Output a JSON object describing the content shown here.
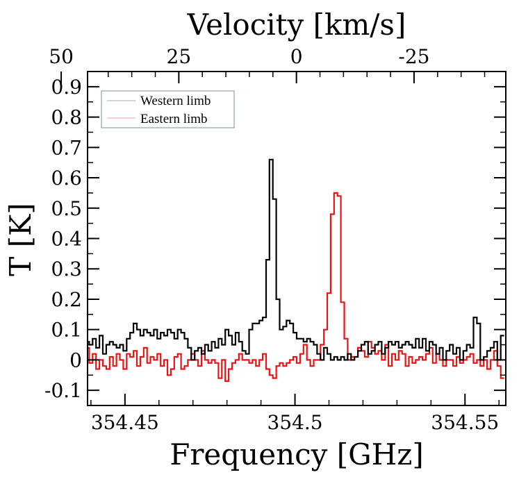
{
  "chart_data": {
    "type": "line",
    "step": true,
    "xlabel": "Frequency [GHz]",
    "x2label": "Velocity [km/s]",
    "ylabel": "T [K]",
    "xlim": [
      354.439,
      354.562
    ],
    "ylim": [
      -0.15,
      0.95
    ],
    "xticks": [
      354.45,
      354.5,
      354.55
    ],
    "xtick_labels": [
      "354.45",
      "354.5",
      "354.55"
    ],
    "x2ticks": [
      50,
      25,
      0,
      -25
    ],
    "x2tick_labels": [
      "50",
      "25",
      "0",
      "-25"
    ],
    "velocity_axis": {
      "v_at_x0": 44.4,
      "v_at_x1": -44.5,
      "x0": 354.439,
      "x1": 354.562
    },
    "yticks": [
      -0.1,
      0,
      0.1,
      0.2,
      0.3,
      0.4,
      0.5,
      0.6,
      0.7,
      0.8,
      0.9
    ],
    "ytick_labels": [
      "-0.1",
      "0",
      "0.1",
      "0.2",
      "0.3",
      "0.4",
      "0.5",
      "0.6",
      "0.7",
      "0.8",
      "0.9"
    ],
    "legend": {
      "position": "top-left",
      "entries": [
        "Western limb",
        "Eastern limb"
      ]
    },
    "series": [
      {
        "name": "Western limb",
        "color": "#000000",
        "x": [
          354.439,
          354.44,
          354.441,
          354.442,
          354.443,
          354.444,
          354.445,
          354.446,
          354.447,
          354.448,
          354.449,
          354.45,
          354.451,
          354.452,
          354.453,
          354.454,
          354.455,
          354.456,
          354.457,
          354.458,
          354.459,
          354.46,
          354.461,
          354.462,
          354.463,
          354.464,
          354.465,
          354.466,
          354.467,
          354.468,
          354.469,
          354.47,
          354.471,
          354.472,
          354.473,
          354.474,
          354.475,
          354.476,
          354.477,
          354.478,
          354.479,
          354.48,
          354.481,
          354.482,
          354.483,
          354.484,
          354.485,
          354.486,
          354.487,
          354.488,
          354.489,
          354.49,
          354.491,
          354.492,
          354.493,
          354.494,
          354.495,
          354.496,
          354.497,
          354.498,
          354.499,
          354.5,
          354.501,
          354.502,
          354.503,
          354.504,
          354.505,
          354.506,
          354.507,
          354.508,
          354.509,
          354.51,
          354.511,
          354.512,
          354.513,
          354.514,
          354.515,
          354.516,
          354.517,
          354.518,
          354.519,
          354.52,
          354.521,
          354.522,
          354.523,
          354.524,
          354.525,
          354.526,
          354.527,
          354.528,
          354.529,
          354.53,
          354.531,
          354.532,
          354.533,
          354.534,
          354.535,
          354.536,
          354.537,
          354.538,
          354.539,
          354.54,
          354.541,
          354.542,
          354.543,
          354.544,
          354.545,
          354.546,
          354.547,
          354.548,
          354.549,
          354.55,
          354.551,
          354.552,
          354.553,
          354.554,
          354.555,
          354.556,
          354.557,
          354.558,
          354.559,
          354.56,
          354.561
        ],
        "y": [
          0.06,
          0.05,
          0.07,
          0.04,
          0.08,
          0.02,
          0.05,
          0.06,
          0.05,
          0.04,
          0.05,
          0.03,
          0.07,
          0.09,
          0.12,
          0.1,
          0.08,
          0.1,
          0.09,
          0.08,
          0.1,
          0.07,
          0.09,
          0.08,
          0.1,
          0.09,
          0.07,
          0.1,
          0.09,
          0.07,
          0.04,
          0.0,
          0.03,
          0.04,
          0.02,
          0.05,
          0.03,
          0.06,
          0.04,
          0.07,
          0.05,
          0.1,
          0.08,
          0.05,
          0.09,
          0.06,
          0.03,
          0.02,
          0.1,
          0.12,
          0.12,
          0.13,
          0.14,
          0.33,
          0.66,
          0.53,
          0.2,
          0.1,
          0.11,
          0.13,
          0.12,
          0.09,
          0.07,
          0.07,
          0.06,
          0.07,
          0.06,
          0.05,
          0.02,
          0.0,
          0.04,
          0.02,
          0.0,
          0.01,
          0.0,
          0.01,
          0.0,
          0.02,
          0.0,
          0.01,
          0.03,
          0.05,
          0.06,
          0.02,
          0.03,
          0.05,
          0.06,
          0.02,
          0.04,
          0.06,
          0.05,
          0.06,
          0.04,
          0.05,
          0.06,
          0.05,
          0.04,
          0.07,
          0.04,
          0.07,
          0.03,
          0.06,
          0.05,
          0.02,
          0.04,
          0.0,
          0.03,
          0.05,
          0.02,
          0.04,
          0.0,
          0.03,
          0.05,
          0.04,
          0.14,
          0.12,
          0.0,
          0.01,
          0.03,
          0.04,
          0.06,
          0.0,
          0.08
        ]
      },
      {
        "name": "Eastern limb",
        "color": "#ee1111",
        "x": [
          354.439,
          354.44,
          354.441,
          354.442,
          354.443,
          354.444,
          354.445,
          354.446,
          354.447,
          354.448,
          354.449,
          354.45,
          354.451,
          354.452,
          354.453,
          354.454,
          354.455,
          354.456,
          354.457,
          354.458,
          354.459,
          354.46,
          354.461,
          354.462,
          354.463,
          354.464,
          354.465,
          354.466,
          354.467,
          354.468,
          354.469,
          354.47,
          354.471,
          354.472,
          354.473,
          354.474,
          354.475,
          354.476,
          354.477,
          354.478,
          354.479,
          354.48,
          354.481,
          354.482,
          354.483,
          354.484,
          354.485,
          354.486,
          354.487,
          354.488,
          354.489,
          354.49,
          354.491,
          354.492,
          354.493,
          354.494,
          354.495,
          354.496,
          354.497,
          354.498,
          354.499,
          354.5,
          354.501,
          354.502,
          354.503,
          354.504,
          354.505,
          354.506,
          354.507,
          354.508,
          354.509,
          354.51,
          354.511,
          354.512,
          354.513,
          354.514,
          354.515,
          354.516,
          354.517,
          354.518,
          354.519,
          354.52,
          354.521,
          354.522,
          354.523,
          354.524,
          354.525,
          354.526,
          354.527,
          354.528,
          354.529,
          354.53,
          354.531,
          354.532,
          354.533,
          354.534,
          354.535,
          354.536,
          354.537,
          354.538,
          354.539,
          354.54,
          354.541,
          354.542,
          354.543,
          354.544,
          354.545,
          354.546,
          354.547,
          354.548,
          354.549,
          354.55,
          354.551,
          354.552,
          354.553,
          354.554,
          354.555,
          354.556,
          354.557,
          354.558,
          354.559,
          354.56,
          354.561
        ],
        "y": [
          0.04,
          -0.01,
          0.02,
          -0.03,
          0.0,
          -0.02,
          -0.03,
          0.01,
          -0.02,
          0.02,
          0.0,
          -0.03,
          0.02,
          0.01,
          0.03,
          -0.02,
          0.01,
          0.04,
          -0.01,
          0.01,
          0.0,
          0.02,
          -0.02,
          0.0,
          -0.05,
          -0.03,
          0.01,
          0.02,
          -0.03,
          -0.02,
          0.0,
          0.02,
          0.0,
          -0.02,
          0.03,
          0.0,
          -0.01,
          0.0,
          -0.01,
          -0.06,
          0.0,
          -0.07,
          -0.03,
          -0.01,
          0.0,
          0.02,
          0.0,
          0.0,
          -0.01,
          0.0,
          -0.02,
          0.0,
          0.02,
          -0.03,
          -0.05,
          -0.06,
          -0.02,
          -0.01,
          -0.02,
          -0.01,
          0.0,
          0.01,
          -0.01,
          0.02,
          0.05,
          0.0,
          -0.02,
          0.0,
          0.0,
          0.05,
          0.1,
          0.22,
          0.48,
          0.55,
          0.54,
          0.19,
          0.07,
          0.0,
          0.01,
          0.01,
          0.04,
          0.03,
          0.01,
          0.06,
          0.04,
          0.02,
          0.03,
          0.0,
          0.05,
          -0.02,
          0.02,
          0.0,
          0.03,
          0.02,
          -0.02,
          0.01,
          -0.01,
          0.0,
          0.01,
          0.0,
          0.02,
          0.04,
          -0.01,
          0.02,
          0.0,
          -0.02,
          0.0,
          0.0,
          -0.02,
          0.01,
          -0.01,
          0.0,
          0.01,
          0.02,
          -0.01,
          0.0,
          -0.02,
          0.0,
          -0.03,
          0.0,
          0.03,
          -0.02,
          -0.06
        ]
      }
    ]
  }
}
